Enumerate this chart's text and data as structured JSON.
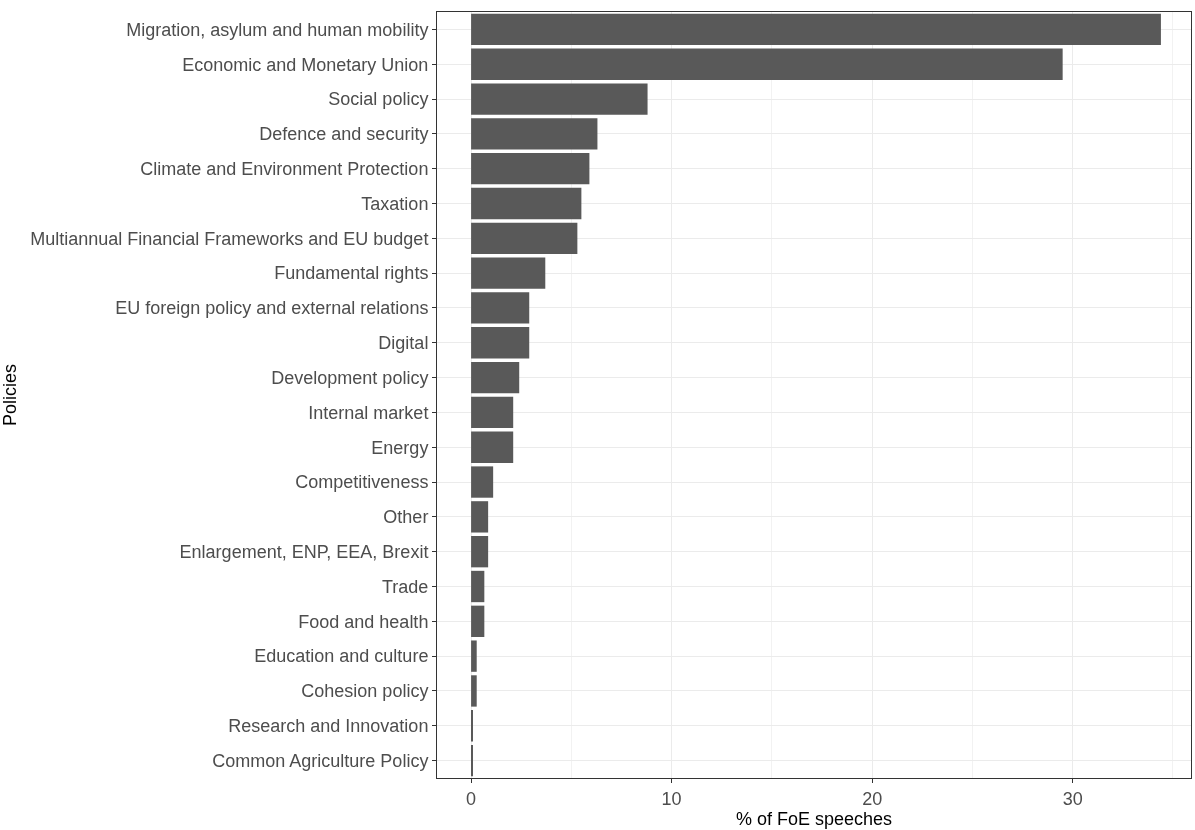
{
  "chart_data": {
    "type": "bar",
    "orientation": "horizontal",
    "xlabel": "% of FoE speeches",
    "ylabel": "Policies",
    "categories": [
      "Migration, asylum and human mobility",
      "Economic and Monetary Union",
      "Social policy",
      "Defence and security",
      "Climate and Environment Protection",
      "Taxation",
      "Multiannual Financial Frameworks and EU budget",
      "Fundamental rights",
      "EU foreign policy and external relations",
      "Digital",
      "Development policy",
      "Internal market",
      "Energy",
      "Competitiveness",
      "Other",
      "Enlargement, ENP, EEA, Brexit",
      "Trade",
      "Food and health",
      "Education and culture",
      "Cohesion policy",
      "Research and Innovation",
      "Common Agriculture Policy"
    ],
    "values": [
      34.4,
      29.5,
      8.8,
      6.3,
      5.9,
      5.5,
      5.3,
      3.7,
      2.9,
      2.9,
      2.4,
      2.1,
      2.1,
      1.1,
      0.85,
      0.85,
      0.66,
      0.66,
      0.28,
      0.28,
      0.07,
      0.07
    ],
    "color": "#595959",
    "xlim": [
      -1.7,
      35.9
    ],
    "xticks": [
      0,
      10,
      20,
      30
    ],
    "grid": true
  }
}
